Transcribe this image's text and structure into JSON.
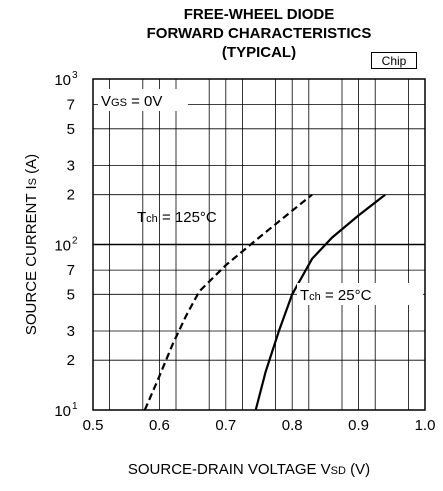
{
  "title_lines": [
    "FREE-WHEEL DIODE",
    "FORWARD CHARACTERISTICS",
    "(TYPICAL)"
  ],
  "badge": "Chip",
  "chart_data": {
    "type": "line",
    "title": "FREE-WHEEL DIODE FORWARD CHARACTERISTICS (TYPICAL)",
    "xlabel": {
      "main": "SOURCE-DRAIN VOLTAGE  V",
      "sub": "SD",
      "unit": " (V)"
    },
    "ylabel": {
      "main": "SOURCE CURRENT  I",
      "sub": "S",
      "unit": " (A)"
    },
    "xlim": [
      0.5,
      1.0
    ],
    "ylim": [
      10,
      1000
    ],
    "yscale": "log",
    "grid": true,
    "x_ticks": [
      "0.5",
      "0.6",
      "0.7",
      "0.8",
      "0.9",
      "1.0"
    ],
    "y_ticks": [
      {
        "value": 10,
        "base": "10",
        "exp": "1"
      },
      {
        "value": 20,
        "label": "2"
      },
      {
        "value": 30,
        "label": "3"
      },
      {
        "value": 50,
        "label": "5"
      },
      {
        "value": 70,
        "label": "7"
      },
      {
        "value": 100,
        "base": "10",
        "exp": "2"
      },
      {
        "value": 200,
        "label": "2"
      },
      {
        "value": 300,
        "label": "3"
      },
      {
        "value": 500,
        "label": "5"
      },
      {
        "value": 700,
        "label": "7"
      },
      {
        "value": 1000,
        "base": "10",
        "exp": "3"
      }
    ],
    "condition": {
      "main": "V",
      "sub": "GS",
      "rest": " = 0V"
    },
    "series": [
      {
        "label_main": "T",
        "label_sub": "ch",
        "label_rest": " = 125°C",
        "dashed": true,
        "points": [
          [
            0.578,
            10
          ],
          [
            0.6,
            16
          ],
          [
            0.62,
            25
          ],
          [
            0.64,
            37
          ],
          [
            0.66,
            52
          ],
          [
            0.7,
            75
          ],
          [
            0.75,
            110
          ],
          [
            0.8,
            160
          ],
          [
            0.83,
            200
          ]
        ]
      },
      {
        "label_main": "T",
        "label_sub": "ch",
        "label_rest": " = 25°C",
        "dashed": false,
        "points": [
          [
            0.745,
            10
          ],
          [
            0.76,
            17
          ],
          [
            0.78,
            30
          ],
          [
            0.8,
            50
          ],
          [
            0.83,
            82
          ],
          [
            0.86,
            110
          ],
          [
            0.9,
            150
          ],
          [
            0.94,
            200
          ]
        ]
      }
    ]
  }
}
